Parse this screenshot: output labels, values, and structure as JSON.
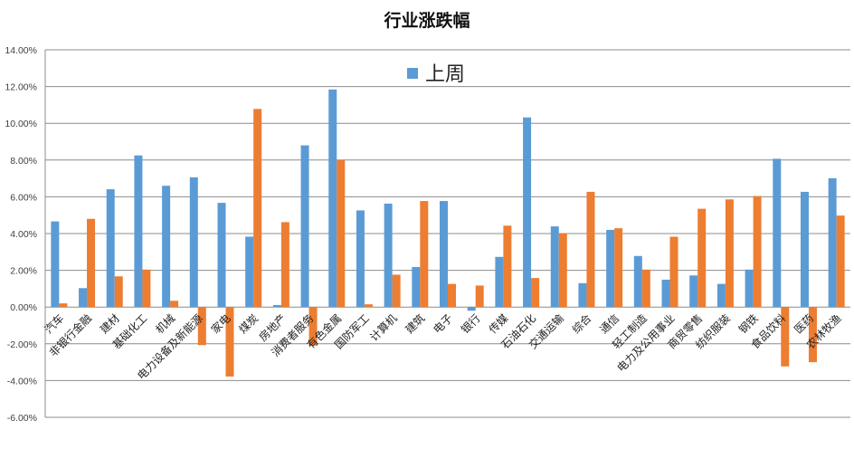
{
  "chart_data": {
    "type": "bar",
    "title": "行业涨跌幅",
    "xlabel": "",
    "ylabel": "",
    "ylim": [
      -0.06,
      0.14
    ],
    "y_tick_step": 0.02,
    "y_tick_labels": [
      "-6.00%",
      "-4.00%",
      "-2.00%",
      "0.00%",
      "2.00%",
      "4.00%",
      "6.00%",
      "8.00%",
      "10.00%",
      "12.00%",
      "14.00%"
    ],
    "grid": true,
    "legend_placement": "top-center",
    "categories": [
      "汽车",
      "非银行金融",
      "建材",
      "基础化工",
      "机械",
      "电力设备及新能源",
      "家电",
      "煤炭",
      "房地产",
      "消费者服务",
      "有色金属",
      "国防军工",
      "计算机",
      "建筑",
      "电子",
      "银行",
      "传媒",
      "石油石化",
      "交通运输",
      "综合",
      "通信",
      "轻工制造",
      "电力及公用事业",
      "商贸零售",
      "纺织服装",
      "钢铁",
      "食品饮料",
      "医药",
      "农林牧渔"
    ],
    "series": [
      {
        "name": "上周",
        "color": "#5b9bd5",
        "values": [
          0.0466,
          0.0103,
          0.0641,
          0.0825,
          0.066,
          0.0706,
          0.0567,
          0.0383,
          0.0011,
          0.088,
          0.1184,
          0.0526,
          0.0563,
          0.0218,
          0.0577,
          -0.002,
          0.0273,
          0.1032,
          0.0439,
          0.013,
          0.042,
          0.0278,
          0.0149,
          0.0172,
          0.0126,
          0.0204,
          0.0807,
          0.0627,
          0.0701
        ]
      },
      {
        "color": "#ed7d31",
        "values": [
          0.002,
          0.048,
          0.0167,
          0.0204,
          0.0034,
          -0.0207,
          -0.0378,
          0.1078,
          0.0462,
          -0.021,
          0.08,
          0.0015,
          0.0176,
          0.0577,
          0.0126,
          0.0117,
          0.0443,
          0.0158,
          0.0402,
          0.0627,
          0.0429,
          0.0204,
          0.0383,
          0.0535,
          0.0586,
          0.0604,
          -0.0323,
          -0.03,
          0.0498
        ]
      }
    ]
  }
}
